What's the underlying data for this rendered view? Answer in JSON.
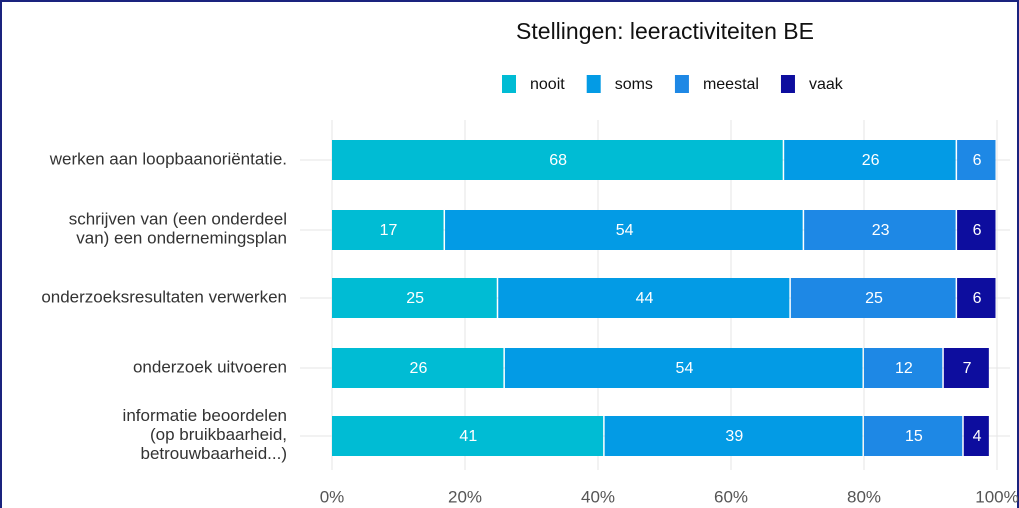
{
  "chart_data": {
    "type": "stacked_barh",
    "title": "Stellingen: leeractiviteiten BE",
    "categories": [
      "werken aan loopbaanoriëntatie.",
      "schrijven van (een onderdeel\nvan) een ondernemingsplan",
      "onderzoeksresultaten verwerken",
      "onderzoek uitvoeren",
      "informatie beoordelen\n(op bruikbaarheid,\nbetrouwbaarheid...)"
    ],
    "series": [
      {
        "name": "nooit",
        "color": "#00bcd4",
        "values": [
          68,
          17,
          25,
          26,
          41
        ]
      },
      {
        "name": "soms",
        "color": "#039be5",
        "values": [
          26,
          54,
          44,
          54,
          39
        ]
      },
      {
        "name": "meestal",
        "color": "#1e88e5",
        "values": [
          6,
          23,
          25,
          12,
          15
        ]
      },
      {
        "name": "vaak",
        "color": "#0d0d9e",
        "values": [
          null,
          6,
          6,
          7,
          4
        ]
      }
    ],
    "xlim": [
      0,
      100
    ],
    "xticks": [
      {
        "value": 0,
        "label": "0%"
      },
      {
        "value": 20,
        "label": "20%"
      },
      {
        "value": 40,
        "label": "40%"
      },
      {
        "value": 60,
        "label": "60%"
      },
      {
        "value": 80,
        "label": "80%"
      },
      {
        "value": 100,
        "label": "100%"
      }
    ],
    "grid": true
  }
}
